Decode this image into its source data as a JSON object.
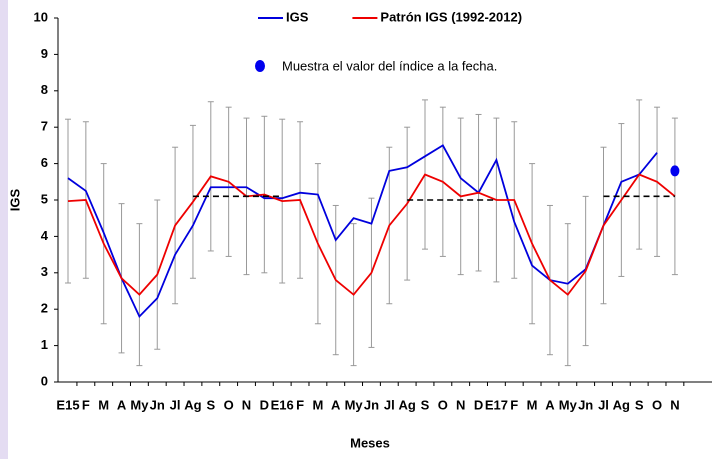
{
  "chart_data": {
    "type": "line",
    "x_label": "Meses",
    "y_label": "IGS",
    "categories": [
      "E15",
      "F",
      "M",
      "A",
      "My",
      "Jn",
      "Jl",
      "Ag",
      "S",
      "O",
      "N",
      "D",
      "E16",
      "F",
      "M",
      "A",
      "My",
      "Jn",
      "Jl",
      "Ag",
      "S",
      "O",
      "N",
      "D",
      "E17",
      "F",
      "M",
      "A",
      "My",
      "Jn",
      "Jl",
      "Ag",
      "S",
      "O",
      "N"
    ],
    "ylim": [
      0,
      10
    ],
    "yticks": [
      0,
      1,
      2,
      3,
      4,
      5,
      6,
      7,
      8,
      9,
      10
    ],
    "series": [
      {
        "name": "IGS",
        "color": "#0000dd",
        "values": [
          5.6,
          5.25,
          4.1,
          2.85,
          1.8,
          2.3,
          3.5,
          4.3,
          5.35,
          5.35,
          5.35,
          5.05,
          5.05,
          5.2,
          5.15,
          3.9,
          4.5,
          4.35,
          5.8,
          5.9,
          6.2,
          6.5,
          5.6,
          5.2,
          6.1,
          4.4,
          3.2,
          2.8,
          2.7,
          3.1,
          4.3,
          5.5,
          5.7,
          6.3,
          null
        ]
      },
      {
        "name": "Patrón IGS (1992-2012)",
        "color": "#ee0000",
        "values": [
          4.97,
          5.0,
          3.8,
          2.85,
          2.4,
          2.95,
          4.3,
          4.95,
          5.65,
          5.5,
          5.1,
          5.15,
          4.97,
          5.0,
          3.8,
          2.8,
          2.4,
          3.0,
          4.3,
          4.9,
          5.7,
          5.5,
          5.1,
          5.2,
          5.0,
          5.0,
          3.8,
          2.8,
          2.4,
          3.05,
          4.3,
          5.0,
          5.7,
          5.5,
          5.1
        ],
        "error": [
          2.25,
          2.15,
          2.2,
          2.05,
          1.95,
          2.05,
          2.15,
          2.1,
          2.05,
          2.05,
          2.15,
          2.15,
          2.25,
          2.15,
          2.2,
          2.05,
          1.95,
          2.05,
          2.15,
          2.1,
          2.05,
          2.05,
          2.15,
          2.15,
          2.25,
          2.15,
          2.2,
          2.05,
          1.95,
          2.05,
          2.15,
          2.1,
          2.05,
          2.05,
          2.15
        ],
        "error_color": "#999999"
      },
      {
        "color": "#000000",
        "dashed": true,
        "values": [
          null,
          null,
          null,
          null,
          null,
          null,
          null,
          5.1,
          5.1,
          5.1,
          5.1,
          5.1,
          5.1,
          null,
          null,
          null,
          null,
          null,
          null,
          5.0,
          5.0,
          5.0,
          5.0,
          5.0,
          5.0,
          null,
          null,
          null,
          null,
          null,
          5.1,
          5.1,
          5.1,
          5.1,
          5.1
        ]
      },
      {
        "name": "Muestra el valor del índice a la fecha.",
        "color": "#0000ee",
        "marker": "dot",
        "values": [
          null,
          null,
          null,
          null,
          null,
          null,
          null,
          null,
          null,
          null,
          null,
          null,
          null,
          null,
          null,
          null,
          null,
          null,
          null,
          null,
          null,
          null,
          null,
          null,
          null,
          null,
          null,
          null,
          null,
          null,
          null,
          null,
          null,
          null,
          5.8
        ]
      }
    ]
  }
}
